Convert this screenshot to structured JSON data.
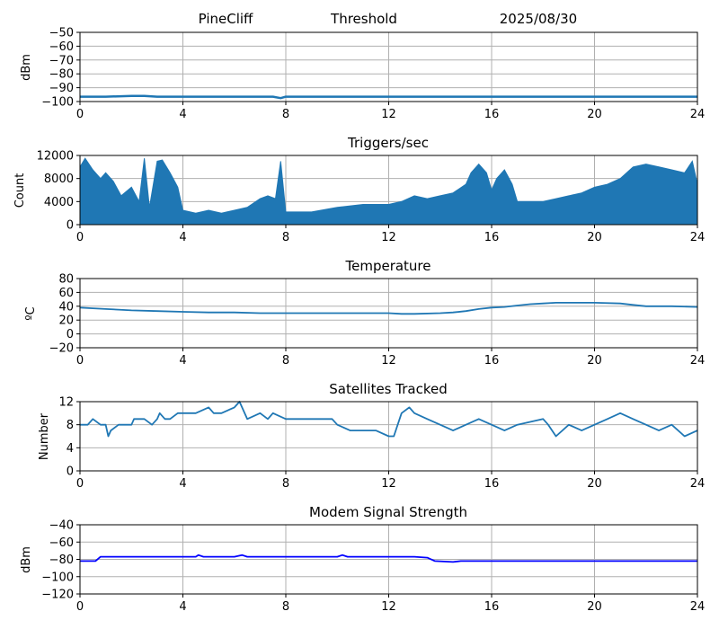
{
  "header": {
    "station": "PineCliff",
    "mode": "Threshold",
    "date": "2025/08/30"
  },
  "chart_data": [
    {
      "type": "line",
      "title": "",
      "ylabel": "dBm",
      "xlim": [
        0,
        24
      ],
      "ylim": [
        -100,
        -50
      ],
      "xticks": [
        0,
        4,
        8,
        12,
        16,
        20,
        24
      ],
      "yticks": [
        -100,
        -90,
        -80,
        -70,
        -60,
        -50
      ],
      "ytick_labels": [
        "−100",
        "−90",
        "−80",
        "−70",
        "−60",
        "−50"
      ],
      "grid": true,
      "color": "#1f77b4",
      "series": [
        {
          "x": [
            0,
            1,
            2,
            2.5,
            3,
            4,
            5,
            6,
            7,
            7.5,
            7.8,
            8,
            10,
            12,
            14,
            16,
            18,
            20,
            22,
            24
          ],
          "y": [
            -96.5,
            -96.5,
            -96,
            -96,
            -96.5,
            -96.5,
            -96.5,
            -96.5,
            -96.5,
            -96.5,
            -97.5,
            -96.5,
            -96.5,
            -96.5,
            -96.5,
            -96.5,
            -96.5,
            -96.5,
            -96.5,
            -96.5
          ]
        }
      ]
    },
    {
      "type": "area",
      "title": "Triggers/sec",
      "ylabel": "Count",
      "xlim": [
        0,
        24
      ],
      "ylim": [
        0,
        12000
      ],
      "xticks": [
        0,
        4,
        8,
        12,
        16,
        20,
        24
      ],
      "yticks": [
        0,
        4000,
        8000,
        12000
      ],
      "ytick_labels": [
        "0",
        "4000",
        "8000",
        "12000"
      ],
      "grid": true,
      "color": "#1f77b4",
      "series": [
        {
          "x": [
            0,
            0.2,
            0.5,
            0.8,
            1.0,
            1.3,
            1.6,
            2.0,
            2.3,
            2.5,
            2.7,
            3.0,
            3.2,
            3.5,
            3.8,
            4.0,
            4.5,
            5.0,
            5.5,
            6.0,
            6.5,
            7.0,
            7.3,
            7.6,
            7.8,
            8.0,
            9.0,
            10.0,
            11.0,
            12.0,
            12.5,
            13.0,
            13.5,
            14.0,
            14.5,
            15.0,
            15.2,
            15.5,
            15.8,
            16.0,
            16.2,
            16.5,
            16.8,
            17.0,
            17.5,
            18.0,
            18.5,
            19.0,
            19.5,
            20.0,
            20.5,
            21.0,
            21.5,
            22.0,
            22.5,
            23.0,
            23.5,
            23.8,
            24.0
          ],
          "y": [
            10000,
            11500,
            9500,
            8000,
            9000,
            7500,
            5000,
            6500,
            4000,
            11500,
            3000,
            11000,
            11200,
            9000,
            6500,
            2500,
            2000,
            2500,
            2000,
            2500,
            3000,
            4500,
            5000,
            4500,
            11000,
            2200,
            2200,
            3000,
            3500,
            3500,
            4000,
            5000,
            4500,
            5000,
            5500,
            7000,
            9000,
            10500,
            9000,
            6000,
            8000,
            9500,
            7000,
            4000,
            4000,
            4000,
            4500,
            5000,
            5500,
            6500,
            7000,
            8000,
            10000,
            10500,
            10000,
            9500,
            9000,
            11000,
            7000
          ]
        }
      ]
    },
    {
      "type": "line",
      "title": "Temperature",
      "ylabel": "ºC",
      "xlim": [
        0,
        24
      ],
      "ylim": [
        -20,
        80
      ],
      "xticks": [
        0,
        4,
        8,
        12,
        16,
        20,
        24
      ],
      "yticks": [
        -20,
        0,
        20,
        40,
        60,
        80
      ],
      "ytick_labels": [
        "−20",
        "0",
        "20",
        "40",
        "60",
        "80"
      ],
      "grid": true,
      "color": "#1f77b4",
      "series": [
        {
          "x": [
            0,
            0.5,
            1.0,
            1.5,
            2.0,
            3.0,
            4.0,
            5.0,
            6.0,
            7.0,
            8.0,
            9.0,
            10.0,
            11.0,
            12.0,
            12.5,
            13.0,
            14.0,
            14.5,
            15.0,
            15.5,
            16.0,
            16.5,
            17.0,
            17.5,
            18.0,
            18.5,
            19.0,
            20.0,
            21.0,
            21.5,
            22.0,
            23.0,
            24.0
          ],
          "y": [
            38,
            37,
            36,
            35,
            34,
            33,
            32,
            31,
            31,
            30,
            30,
            30,
            30,
            30,
            30,
            29,
            29,
            30,
            31,
            33,
            36,
            38,
            39,
            41,
            43,
            44,
            45,
            45,
            45,
            44,
            42,
            40,
            40,
            39
          ]
        }
      ]
    },
    {
      "type": "line",
      "title": "Satellites Tracked",
      "ylabel": "Number",
      "xlim": [
        0,
        24
      ],
      "ylim": [
        0,
        12
      ],
      "xticks": [
        0,
        4,
        8,
        12,
        16,
        20,
        24
      ],
      "yticks": [
        0,
        4,
        8,
        12
      ],
      "ytick_labels": [
        "0",
        "4",
        "8",
        "12"
      ],
      "grid": true,
      "color": "#1f77b4",
      "series": [
        {
          "x": [
            0,
            0.3,
            0.5,
            0.8,
            1.0,
            1.1,
            1.2,
            1.5,
            2.0,
            2.1,
            2.5,
            2.8,
            3.0,
            3.1,
            3.3,
            3.5,
            3.8,
            4.0,
            4.5,
            5.0,
            5.2,
            5.5,
            6.0,
            6.2,
            6.5,
            7.0,
            7.3,
            7.5,
            8.0,
            9.0,
            9.8,
            10.0,
            10.5,
            11.0,
            11.5,
            12.0,
            12.2,
            12.5,
            12.8,
            13.0,
            13.5,
            14.0,
            14.5,
            15.0,
            15.5,
            16.0,
            16.5,
            17.0,
            18.0,
            18.2,
            18.5,
            19.0,
            19.5,
            20.0,
            20.5,
            21.0,
            21.5,
            22.0,
            22.5,
            23.0,
            23.5,
            24.0
          ],
          "y": [
            8,
            8,
            9,
            8,
            8,
            6,
            7,
            8,
            8,
            9,
            9,
            8,
            9,
            10,
            9,
            9,
            10,
            10,
            10,
            11,
            10,
            10,
            11,
            12,
            9,
            10,
            9,
            10,
            9,
            9,
            9,
            8,
            7,
            7,
            7,
            6,
            6,
            10,
            11,
            10,
            9,
            8,
            7,
            8,
            9,
            8,
            7,
            8,
            9,
            8,
            6,
            8,
            7,
            8,
            9,
            10,
            9,
            8,
            7,
            8,
            6,
            7
          ]
        }
      ]
    },
    {
      "type": "line",
      "title": "Modem Signal Strength",
      "ylabel": "dBm",
      "xlim": [
        0,
        24
      ],
      "ylim": [
        -120,
        -40
      ],
      "xticks": [
        0,
        4,
        8,
        12,
        16,
        20,
        24
      ],
      "yticks": [
        -120,
        -100,
        -80,
        -60,
        -40
      ],
      "ytick_labels": [
        "−120",
        "−100",
        "−80",
        "−60",
        "−40"
      ],
      "grid": true,
      "color": "#0000ff",
      "series": [
        {
          "x": [
            0,
            0.6,
            0.8,
            4.5,
            4.6,
            4.8,
            6.0,
            6.3,
            6.5,
            10.0,
            10.2,
            10.4,
            13.0,
            13.5,
            13.8,
            14.5,
            14.8,
            16,
            20,
            24
          ],
          "y": [
            -82,
            -82,
            -77,
            -77,
            -75,
            -77,
            -77,
            -75,
            -77,
            -77,
            -75,
            -77,
            -77,
            -78,
            -82,
            -83,
            -82,
            -82,
            -82,
            -82
          ]
        }
      ]
    }
  ]
}
